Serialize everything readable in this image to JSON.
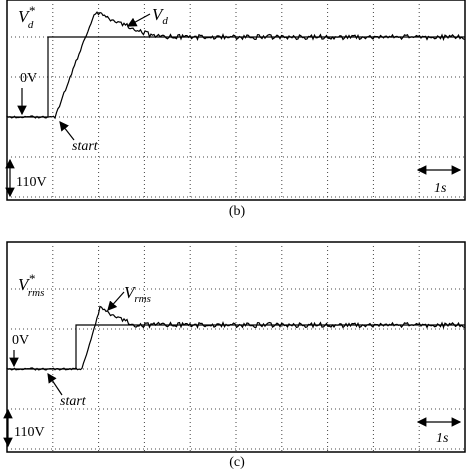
{
  "panels": [
    {
      "caption": "(b)",
      "reference": {
        "main": "V",
        "sup": "*",
        "sub": "d"
      },
      "measured": {
        "main": "V",
        "sub": "d"
      },
      "zero": "0V",
      "start": "start",
      "volt_scale": "110V",
      "time_scale": "1s"
    },
    {
      "caption": "(c)",
      "reference": {
        "main": "V",
        "sup": "*",
        "sub": "rms"
      },
      "measured": {
        "main": "V",
        "sub": "rms"
      },
      "zero": "0V",
      "start": "start",
      "volt_scale": "110V",
      "time_scale": "1s"
    }
  ]
}
